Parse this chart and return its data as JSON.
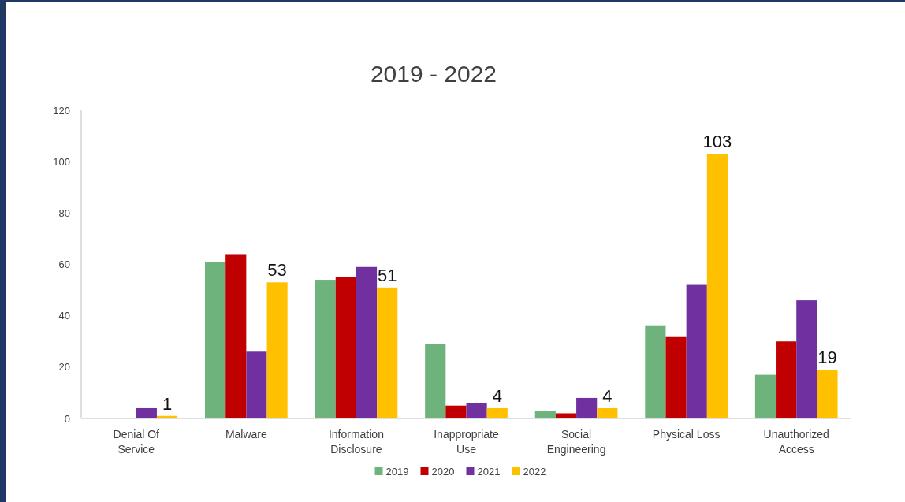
{
  "chart_data": {
    "type": "bar",
    "title": "2019 - 2022",
    "categories": [
      "Denial Of Service",
      "Malware",
      "Information Disclosure",
      "Inappropriate Use",
      "Social Engineering",
      "Physical Loss",
      "Unauthorized Access"
    ],
    "series": [
      {
        "name": "2019",
        "color": "#6db37b",
        "values": [
          0,
          61,
          54,
          29,
          3,
          36,
          17
        ]
      },
      {
        "name": "2020",
        "color": "#c00000",
        "values": [
          0,
          64,
          55,
          5,
          2,
          32,
          30
        ]
      },
      {
        "name": "2021",
        "color": "#7030a0",
        "values": [
          4,
          26,
          59,
          6,
          8,
          52,
          46
        ]
      },
      {
        "name": "2022",
        "color": "#ffc000",
        "values": [
          1,
          53,
          51,
          4,
          4,
          103,
          19
        ],
        "value_labels": [
          "1",
          "53",
          "51",
          "4",
          "4",
          "103",
          "19"
        ]
      }
    ],
    "ylim": [
      0,
      120
    ],
    "yticks": [
      0,
      20,
      40,
      60,
      80,
      100,
      120
    ],
    "grid": false,
    "legend": "bottom"
  }
}
